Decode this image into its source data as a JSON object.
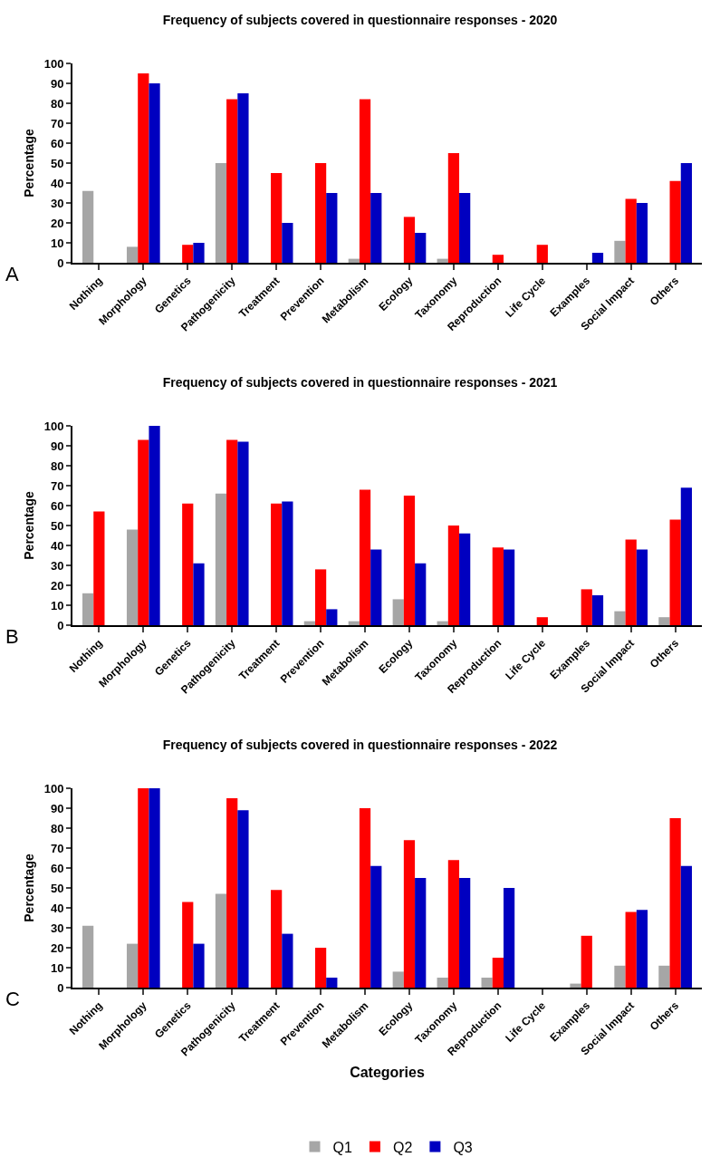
{
  "chart_data": [
    {
      "type": "bar",
      "title": "Frequency of subjects covered in questionnaire responses - 2020",
      "ylabel": "Percentage",
      "annotations": [
        "A"
      ],
      "categories": [
        "Nothing",
        "Morphology",
        "Genetics",
        "Pathogenicity",
        "Treatment",
        "Prevention",
        "Metabolism",
        "Ecology",
        "Taxonomy",
        "Reproduction",
        "Life Cycle",
        "Examples",
        "Social Impact",
        "Others"
      ],
      "series": [
        {
          "color": "#a6a6a6",
          "values": [
            36,
            8,
            0,
            50,
            0,
            0,
            2,
            0,
            2,
            0,
            0,
            0,
            11,
            0
          ]
        },
        {
          "color": "#ff0000",
          "values": [
            0,
            95,
            9,
            82,
            45,
            50,
            82,
            23,
            55,
            4,
            9,
            0,
            32,
            41
          ]
        },
        {
          "color": "#0000c0",
          "values": [
            0,
            90,
            10,
            85,
            20,
            35,
            35,
            15,
            35,
            0,
            0,
            5,
            30,
            50
          ]
        }
      ],
      "ylim": [
        0,
        100
      ],
      "yticks": [
        0,
        10,
        20,
        30,
        40,
        50,
        60,
        70,
        80,
        90,
        100
      ],
      "grid": false,
      "legend": false
    },
    {
      "type": "bar",
      "title": "Frequency of subjects covered in questionnaire responses - 2021",
      "ylabel": "Percentage",
      "annotations": [
        "B"
      ],
      "categories": [
        "Nothing",
        "Morphology",
        "Genetics",
        "Pathogenicity",
        "Treatment",
        "Prevention",
        "Metabolism",
        "Ecology",
        "Taxonomy",
        "Reproduction",
        "Life Cycle",
        "Examples",
        "Social Impact",
        "Others"
      ],
      "series": [
        {
          "color": "#a6a6a6",
          "values": [
            16,
            48,
            0,
            66,
            0,
            2,
            2,
            13,
            2,
            0,
            0,
            0,
            7,
            4
          ]
        },
        {
          "color": "#ff0000",
          "values": [
            57,
            93,
            61,
            93,
            61,
            28,
            68,
            65,
            50,
            39,
            4,
            18,
            43,
            53
          ]
        },
        {
          "color": "#0000c0",
          "values": [
            0,
            100,
            31,
            92,
            62,
            8,
            38,
            31,
            46,
            38,
            0,
            15,
            38,
            69
          ]
        }
      ],
      "ylim": [
        0,
        100
      ],
      "yticks": [
        0,
        10,
        20,
        30,
        40,
        50,
        60,
        70,
        80,
        90,
        100
      ],
      "grid": false,
      "legend": false
    },
    {
      "type": "bar",
      "title": "Frequency of subjects covered in questionnaire responses - 2022",
      "ylabel": "Percentage",
      "xlabel": "Categories",
      "annotations": [
        "C"
      ],
      "categories": [
        "Nothing",
        "Morphology",
        "Genetics",
        "Pathogenicity",
        "Treatment",
        "Prevention",
        "Metabolism",
        "Ecology",
        "Taxonomy",
        "Reproduction",
        "Life Cycle",
        "Examples",
        "Social Impact",
        "Others"
      ],
      "series": [
        {
          "name": "Q1",
          "color": "#a6a6a6",
          "values": [
            31,
            22,
            0,
            47,
            0,
            0,
            0,
            8,
            5,
            5,
            0,
            2,
            11,
            11
          ]
        },
        {
          "name": "Q2",
          "color": "#ff0000",
          "values": [
            0,
            100,
            43,
            95,
            49,
            20,
            90,
            74,
            64,
            15,
            0,
            26,
            38,
            85
          ]
        },
        {
          "name": "Q3",
          "color": "#0000c0",
          "values": [
            0,
            100,
            22,
            89,
            27,
            5,
            61,
            55,
            55,
            50,
            0,
            0,
            39,
            61
          ]
        }
      ],
      "ylim": [
        0,
        100
      ],
      "yticks": [
        0,
        10,
        20,
        30,
        40,
        50,
        60,
        70,
        80,
        90,
        100
      ],
      "grid": false,
      "legend": "bottom"
    }
  ]
}
